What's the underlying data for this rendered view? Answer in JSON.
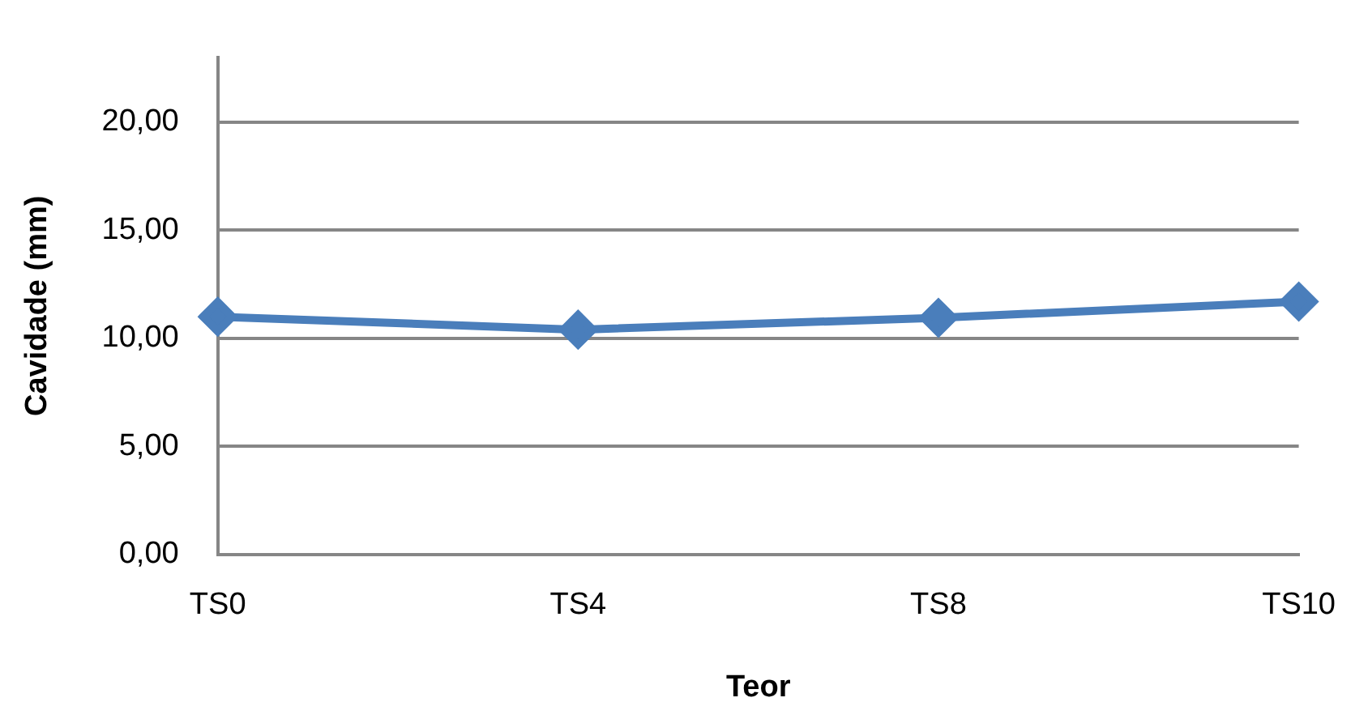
{
  "chart_data": {
    "type": "line",
    "xlabel": "Teor",
    "ylabel": "Cavidade (mm)",
    "categories": [
      "TS0",
      "TS4",
      "TS8",
      "TS10"
    ],
    "series": [
      {
        "color": "#4a7ebb",
        "values": [
          11.0,
          10.4,
          10.95,
          11.7
        ]
      }
    ],
    "ylim": [
      0,
      23
    ],
    "yticks": [
      {
        "value": 0,
        "label": "0,00"
      },
      {
        "value": 5,
        "label": "5,00"
      },
      {
        "value": 10,
        "label": "10,00"
      },
      {
        "value": 15,
        "label": "15,00"
      },
      {
        "value": 20,
        "label": "20,00"
      }
    ],
    "grid": "y",
    "legend": false,
    "marker": "diamond",
    "line_style": "solid"
  }
}
